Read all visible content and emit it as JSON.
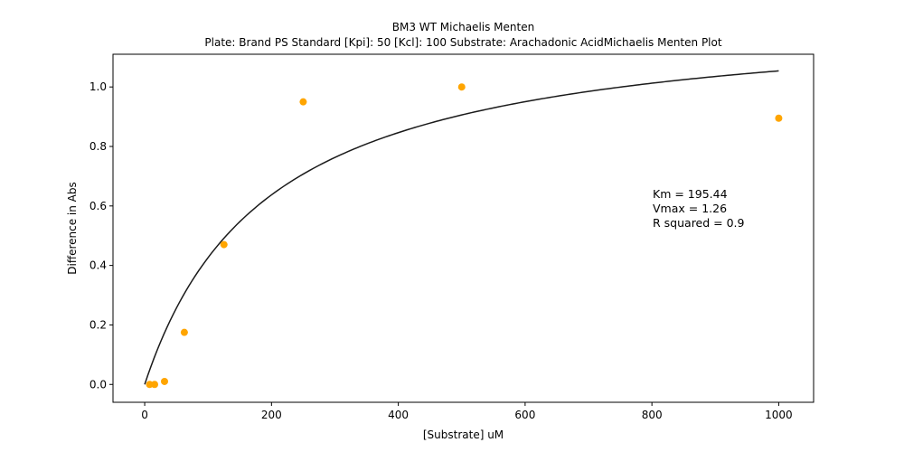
{
  "chart_data": {
    "type": "scatter",
    "title": "BM3 WT Michaelis Menten",
    "subtitle": "Plate: Brand PS Standard  [Kpi]: 50  [Kcl]: 100  Substrate: Arachadonic AcidMichaelis Menten Plot",
    "xlabel": "[Substrate] uM",
    "ylabel": "Difference in Abs",
    "xlim": [
      -50,
      1055
    ],
    "ylim": [
      -0.06,
      1.11
    ],
    "x_ticks": [
      0,
      200,
      400,
      600,
      800,
      1000
    ],
    "y_ticks": [
      0.0,
      0.2,
      0.4,
      0.6,
      0.8,
      1.0
    ],
    "x_tick_labels": [
      "0",
      "200",
      "400",
      "600",
      "800",
      "1000"
    ],
    "y_tick_labels": [
      "0.0",
      "0.2",
      "0.4",
      "0.6",
      "0.8",
      "1.0"
    ],
    "grid": false,
    "series": [
      {
        "kind": "points",
        "color": "#ffa500",
        "x": [
          7.8,
          15.6,
          31.25,
          62.5,
          125,
          250,
          500,
          1000
        ],
        "y": [
          0.0,
          0.0,
          0.01,
          0.175,
          0.47,
          0.95,
          1.0,
          0.895
        ]
      },
      {
        "kind": "fit-curve",
        "model": "michaelis-menten",
        "color": "#1a1a1a",
        "Km": 195.44,
        "Vmax": 1.26,
        "x_range": [
          0,
          1000
        ]
      }
    ],
    "annotations": [
      "Km = 195.44",
      "Vmax = 1.26",
      "R squared = 0.9"
    ]
  }
}
